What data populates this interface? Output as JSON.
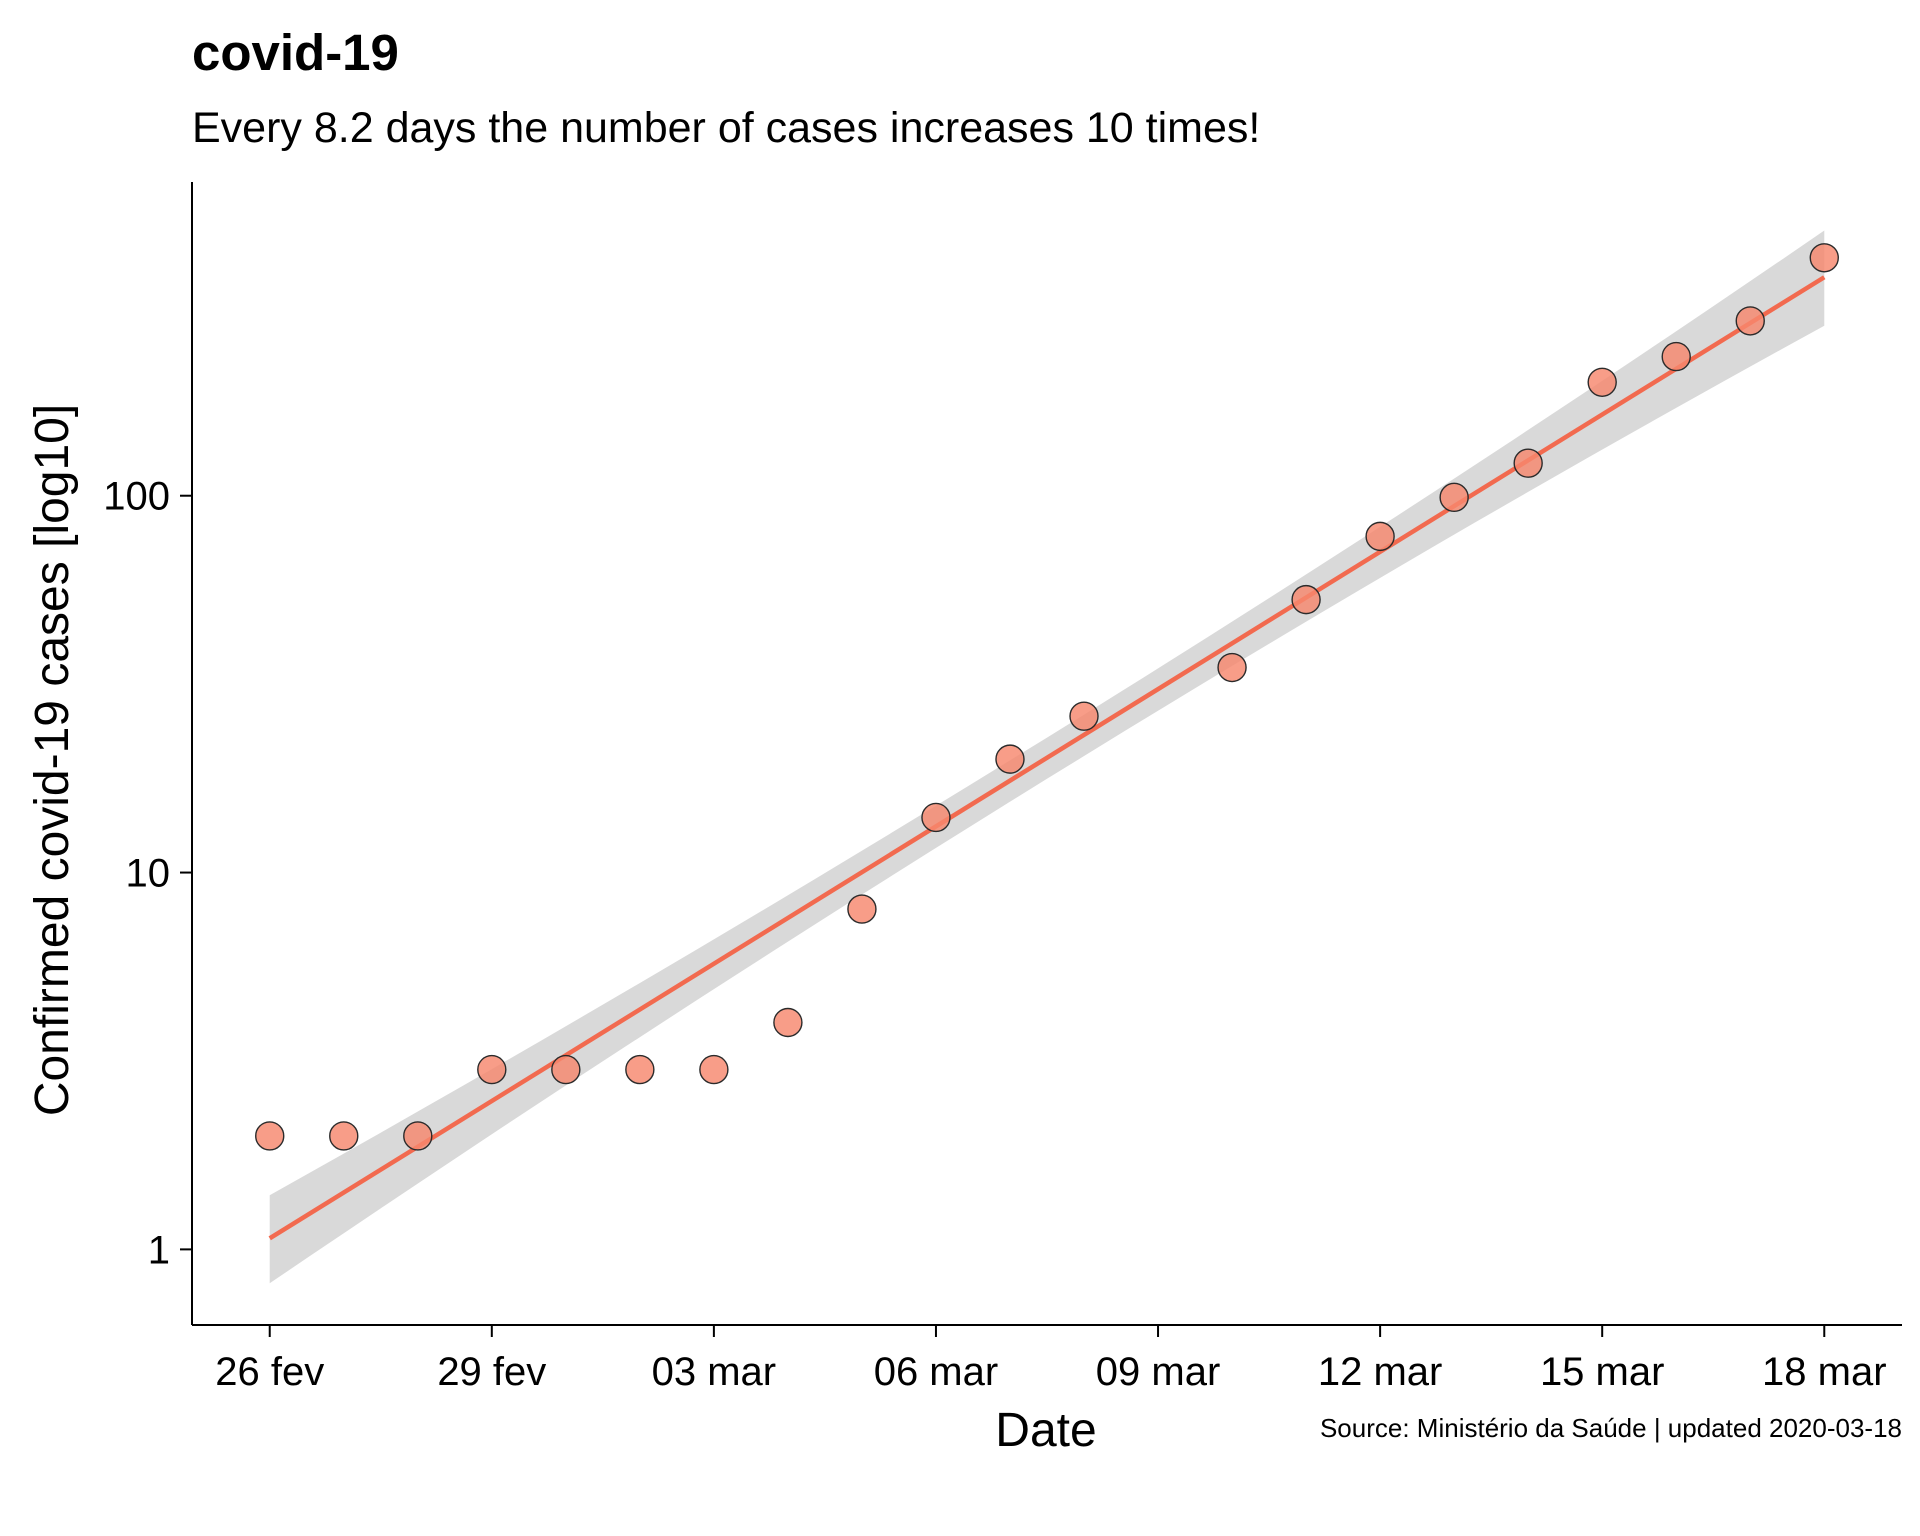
{
  "chart_data": {
    "type": "scatter",
    "title": "covid-19",
    "subtitle": "Every  8.2 days the number of cases increases 10 times!",
    "caption": "Source: Ministério da Saúde | updated 2020-03-18",
    "xlabel": "Date",
    "ylabel": "Confirmed covid-19 cases [log10]",
    "y_scale": "log10",
    "ylim": [
      0.63,
      680
    ],
    "xlim": [
      "2020-02-25",
      "2020-03-18"
    ],
    "x_tick_labels": [
      "26 fev",
      "29 fev",
      "03 mar",
      "06 mar",
      "09 mar",
      "12 mar",
      "15 mar",
      "18 mar"
    ],
    "x_tick_values": [
      "2020-02-26",
      "2020-02-29",
      "2020-03-03",
      "2020-03-06",
      "2020-03-09",
      "2020-03-12",
      "2020-03-15",
      "2020-03-18"
    ],
    "y_tick_labels": [
      "1",
      "10",
      "100"
    ],
    "y_tick_values": [
      1,
      10,
      100
    ],
    "grid": false,
    "legend": "none",
    "points": {
      "x": [
        "2020-02-26",
        "2020-02-27",
        "2020-02-28",
        "2020-02-29",
        "2020-03-01",
        "2020-03-02",
        "2020-03-03",
        "2020-03-04",
        "2020-03-05",
        "2020-03-06",
        "2020-03-07",
        "2020-03-08",
        "2020-03-10",
        "2020-03-11",
        "2020-03-12",
        "2020-03-13",
        "2020-03-14",
        "2020-03-15",
        "2020-03-16",
        "2020-03-17",
        "2020-03-18"
      ],
      "y": [
        2,
        2,
        2,
        3,
        3,
        3,
        3,
        4,
        8,
        14,
        20,
        26,
        35,
        53,
        78,
        99,
        122,
        200,
        234,
        291,
        428
      ]
    },
    "trend_line": {
      "x": [
        "2020-02-26",
        "2020-03-18"
      ],
      "y": [
        1.07,
        380
      ],
      "ci_lower": [
        0.82,
        280
      ],
      "ci_upper": [
        1.38,
        510
      ]
    },
    "colors": {
      "points": "#f7876e",
      "point_outline": "#2b2b2b",
      "trend_line": "#f26a4f",
      "confidence_band": "#d9d9d9"
    }
  }
}
